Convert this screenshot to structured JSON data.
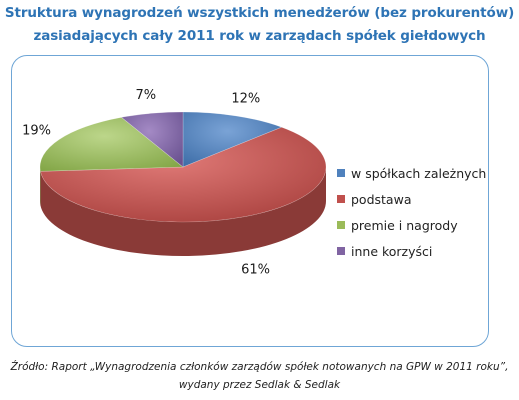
{
  "title_line1": "Struktura wynagrodzeń wszystkich menedżerów (bez prokurentów)",
  "title_line2": "zasiadających cały 2011 rok w zarządach spółek giełdowych",
  "chart_data": {
    "type": "pie",
    "style": "3d",
    "legend_position": "right",
    "categories": [
      "w spółkach zależnych",
      "podstawa",
      "premie i nagrody",
      "inne korzyści"
    ],
    "values": [
      12,
      61,
      19,
      7
    ],
    "labels": [
      "12%",
      "61%",
      "19%",
      "7%"
    ],
    "colors": [
      "#4f81bd",
      "#c0504d",
      "#9bbb59",
      "#8064a2"
    ]
  },
  "source_line1": "Źródło: Raport „Wynagrodzenia członków zarządów spółek notowanych na GPW w 2011 roku”,",
  "source_line2": "wydany przez Sedlak & Sedlak"
}
